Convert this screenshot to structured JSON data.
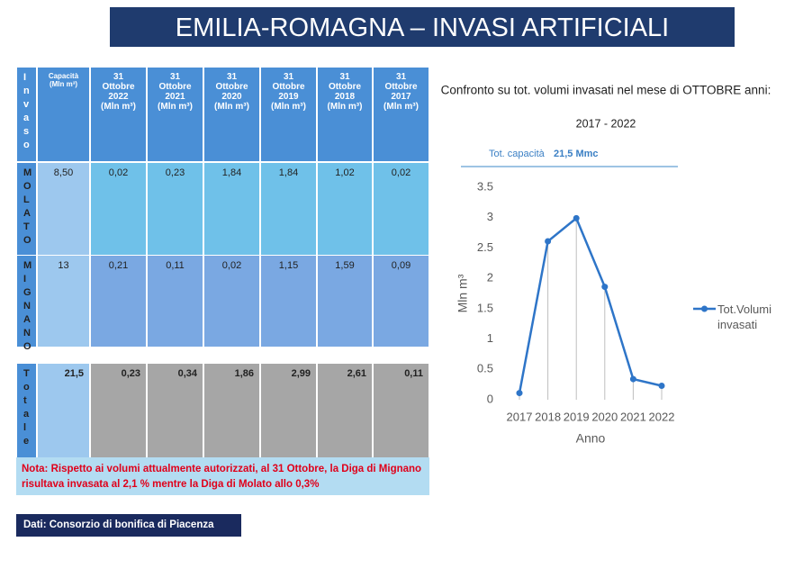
{
  "header": {
    "title": "EMILIA-ROMAGNA – INVASI ARTIFICIALI"
  },
  "table": {
    "header": [
      [
        "Invaso"
      ],
      [
        "Capacità",
        "(Mln m³)"
      ],
      [
        "31",
        "Ottobre",
        "2022",
        "(Mln m³)"
      ],
      [
        "31",
        "Ottobre",
        "2021",
        "(Mln m³)"
      ],
      [
        "31",
        "Ottobre",
        "2020",
        "(Mln m³)"
      ],
      [
        "31",
        "Ottobre",
        "2019",
        "(Mln m³)"
      ],
      [
        "31",
        "Ottobre",
        "2018",
        "(Mln m³)"
      ],
      [
        "31",
        "Ottobre",
        "2017",
        "(Mln m³)"
      ]
    ],
    "rows": [
      [
        "MOLATO",
        "8,50",
        "0,02",
        "0,23",
        "1,84",
        "1,84",
        "1,02",
        "0,02"
      ],
      [
        "MIGNANO",
        "13",
        "0,21",
        "0,11",
        "0,02",
        "1,15",
        "1,59",
        "0,09"
      ],
      [
        "Totale",
        "21,5",
        "0,23",
        "0,34",
        "1,86",
        "2,99",
        "2,61",
        "0,11"
      ]
    ]
  },
  "note": "Nota: Rispetto ai volumi attualmente autorizzati, al 31 Ottobre, la Diga di Mignano risultava invasata al 2,1 % mentre la Diga di Molato allo 0,3%",
  "source": "Dati: Consorzio di bonifica di Piacenza",
  "chart_data": {
    "type": "line",
    "title": "Confronto su tot. volumi invasati nel mese di OTTOBRE anni:",
    "subtitle": "2017 - 2022",
    "annotation": {
      "label": "Tot. capacità",
      "value": "21,5 Mmc"
    },
    "x_label": "Anno",
    "y_label": "Mln m³",
    "categories": [
      "2017",
      "2018",
      "2019",
      "2020",
      "2021",
      "2022"
    ],
    "series": [
      {
        "name": "Tot.Volumi invasati",
        "color": "#2e75c8",
        "values": [
          0.11,
          2.61,
          2.99,
          1.86,
          0.34,
          0.23
        ]
      }
    ],
    "ylim": [
      0,
      3.5
    ],
    "yticks": [
      0,
      0.5,
      1,
      1.5,
      2,
      2.5,
      3,
      3.5
    ],
    "grid": false,
    "legend": "right"
  }
}
